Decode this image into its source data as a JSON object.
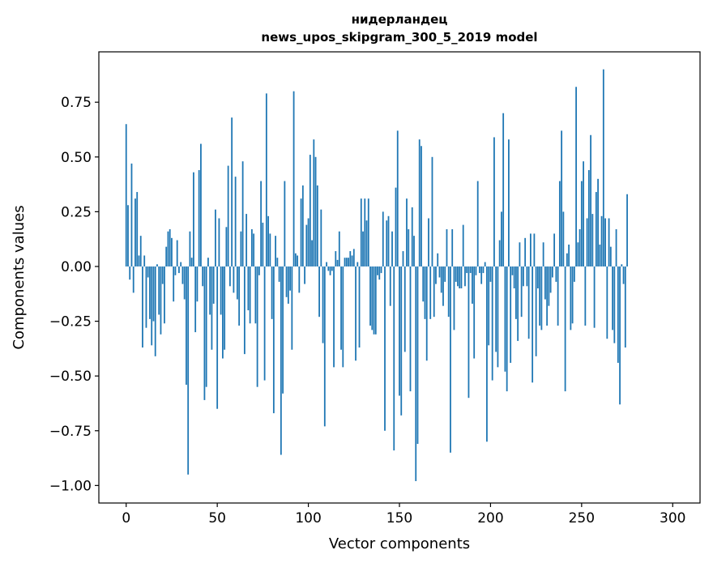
{
  "chart_data": {
    "type": "bar",
    "title": "нидерландец",
    "subtitle": "news_upos_skipgram_300_5_2019 model",
    "xlabel": "Vector components",
    "ylabel": "Components values",
    "xlim": [
      -15,
      315
    ],
    "ylim": [
      -1.08,
      0.98
    ],
    "xticks": [
      0,
      50,
      100,
      150,
      200,
      250,
      300
    ],
    "xtick_labels": [
      "0",
      "50",
      "100",
      "150",
      "200",
      "250",
      "300"
    ],
    "yticks": [
      -1.0,
      -0.75,
      -0.5,
      -0.25,
      0.0,
      0.25,
      0.5,
      0.75
    ],
    "ytick_labels": [
      "−1.00",
      "−0.75",
      "−0.50",
      "−0.25",
      "0.00",
      "0.25",
      "0.50",
      "0.75"
    ],
    "bar_color": "#1f77b4",
    "grid": false,
    "legend": "none",
    "values": [
      0.65,
      0.28,
      -0.06,
      0.47,
      -0.12,
      0.31,
      0.34,
      0.05,
      0.14,
      -0.37,
      0.05,
      -0.28,
      -0.05,
      -0.24,
      -0.36,
      -0.25,
      -0.41,
      0.01,
      -0.22,
      -0.31,
      -0.08,
      -0.26,
      0.09,
      0.16,
      0.17,
      0.13,
      -0.16,
      -0.04,
      0.12,
      -0.03,
      0.02,
      -0.08,
      -0.15,
      -0.54,
      -0.95,
      0.16,
      0.04,
      0.43,
      -0.3,
      -0.16,
      0.44,
      0.56,
      -0.09,
      -0.61,
      -0.55,
      0.04,
      -0.22,
      -0.38,
      -0.17,
      0.26,
      -0.65,
      0.22,
      -0.22,
      -0.42,
      -0.38,
      0.18,
      0.46,
      -0.09,
      0.68,
      -0.12,
      0.41,
      -0.15,
      -0.27,
      0.16,
      0.48,
      -0.4,
      0.24,
      -0.2,
      -0.26,
      0.17,
      0.15,
      -0.26,
      -0.55,
      -0.04,
      0.39,
      0.2,
      -0.52,
      0.79,
      0.23,
      0.15,
      -0.24,
      -0.67,
      0.14,
      0.04,
      -0.07,
      -0.86,
      -0.58,
      0.39,
      -0.14,
      -0.17,
      -0.11,
      -0.38,
      0.8,
      0.06,
      0.05,
      -0.12,
      0.31,
      0.37,
      -0.08,
      0.19,
      0.22,
      0.51,
      0.12,
      0.58,
      0.5,
      0.37,
      -0.23,
      0.26,
      -0.35,
      -0.73,
      0.02,
      -0.02,
      -0.04,
      -0.02,
      -0.46,
      0.07,
      0.03,
      0.16,
      -0.38,
      -0.46,
      0.04,
      0.04,
      0.04,
      0.07,
      0.05,
      0.08,
      -0.43,
      0.02,
      -0.37,
      0.31,
      0.16,
      0.31,
      0.21,
      0.31,
      -0.27,
      -0.29,
      -0.31,
      -0.31,
      -0.04,
      -0.06,
      -0.03,
      0.25,
      -0.75,
      0.21,
      0.23,
      -0.18,
      0.16,
      -0.84,
      0.36,
      0.62,
      -0.59,
      -0.68,
      0.07,
      -0.39,
      0.31,
      0.17,
      -0.57,
      0.27,
      0.14,
      -0.98,
      -0.81,
      0.58,
      0.55,
      -0.16,
      -0.24,
      -0.43,
      0.22,
      -0.24,
      0.5,
      -0.23,
      -0.08,
      0.06,
      -0.05,
      -0.12,
      -0.18,
      -0.07,
      0.17,
      -0.23,
      -0.85,
      0.17,
      -0.29,
      -0.07,
      -0.09,
      -0.1,
      -0.1,
      0.19,
      -0.09,
      -0.03,
      -0.6,
      -0.03,
      -0.17,
      -0.42,
      -0.04,
      0.39,
      -0.03,
      -0.08,
      -0.03,
      0.02,
      -0.8,
      -0.36,
      -0.07,
      -0.52,
      0.59,
      -0.39,
      -0.46,
      0.12,
      0.25,
      0.7,
      -0.48,
      -0.57,
      0.58,
      -0.44,
      -0.04,
      -0.1,
      -0.24,
      -0.34,
      0.11,
      -0.23,
      -0.09,
      0.13,
      -0.09,
      -0.33,
      0.15,
      -0.53,
      0.15,
      -0.41,
      -0.1,
      -0.27,
      -0.29,
      0.11,
      -0.15,
      -0.27,
      -0.18,
      -0.12,
      -0.05,
      0.15,
      -0.07,
      -0.27,
      0.39,
      0.62,
      0.25,
      -0.57,
      0.06,
      0.1,
      -0.29,
      -0.26,
      -0.07,
      0.82,
      0.11,
      0.17,
      0.39,
      0.48,
      -0.27,
      0.22,
      0.44,
      0.6,
      0.24,
      -0.28,
      0.34,
      0.4,
      0.1,
      0.23,
      0.9,
      0.22,
      -0.33,
      0.22,
      0.09,
      -0.29,
      -0.35,
      0.17,
      -0.44,
      -0.63,
      0.01,
      -0.08,
      -0.37,
      0.33
    ]
  }
}
